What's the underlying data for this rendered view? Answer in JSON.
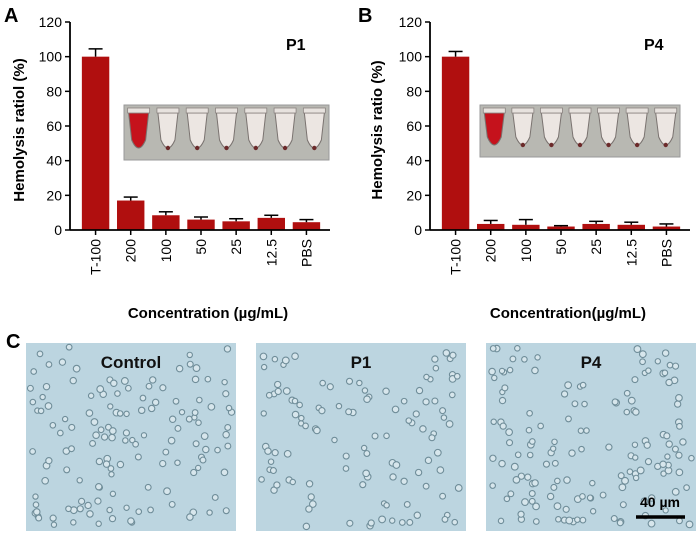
{
  "panels": {
    "a": "A",
    "b": "B",
    "c": "C"
  },
  "colors": {
    "bar": "#b00f0f",
    "error": "#000000",
    "blood": "#c5121c",
    "cell_bg": "#bcd5e0",
    "cell": "#6f8d99",
    "tube_bg": "#b8b8b2"
  },
  "micrographs": {
    "labels": [
      "Control",
      "P1",
      "P4"
    ],
    "scale_bar": "40 µm"
  },
  "chart_data": [
    {
      "type": "bar",
      "title": "",
      "series_tag": "P1",
      "xlabel": "Concentration (µg/mL)",
      "ylabel": "Hemolysis ratiol (%)",
      "ylim": [
        0,
        120
      ],
      "yticks": [
        0,
        20,
        40,
        60,
        80,
        100,
        120
      ],
      "categories": [
        "T-100",
        "200",
        "100",
        "50",
        "25",
        "12.5",
        "PBS"
      ],
      "values": [
        100,
        17,
        8.5,
        6,
        5,
        7,
        4.5
      ],
      "errors": [
        4.5,
        2,
        2,
        1.5,
        1.5,
        1.5,
        1.5
      ],
      "inset": "photo of tubes: 1 red, 6 clear"
    },
    {
      "type": "bar",
      "title": "",
      "series_tag": "P4",
      "xlabel": "Concentration(µg/mL)",
      "ylabel": "Hemolysis ratio (%)",
      "ylim": [
        0,
        120
      ],
      "yticks": [
        0,
        20,
        40,
        60,
        80,
        100,
        120
      ],
      "categories": [
        "T-100",
        "200",
        "100",
        "50",
        "25",
        "12.5",
        "PBS"
      ],
      "values": [
        100,
        3.5,
        3,
        2,
        3.5,
        3,
        2
      ],
      "errors": [
        3,
        2,
        3,
        0.5,
        1.5,
        1.5,
        1.5
      ],
      "inset": "photo of tubes: 1 red, 6 clear"
    }
  ]
}
